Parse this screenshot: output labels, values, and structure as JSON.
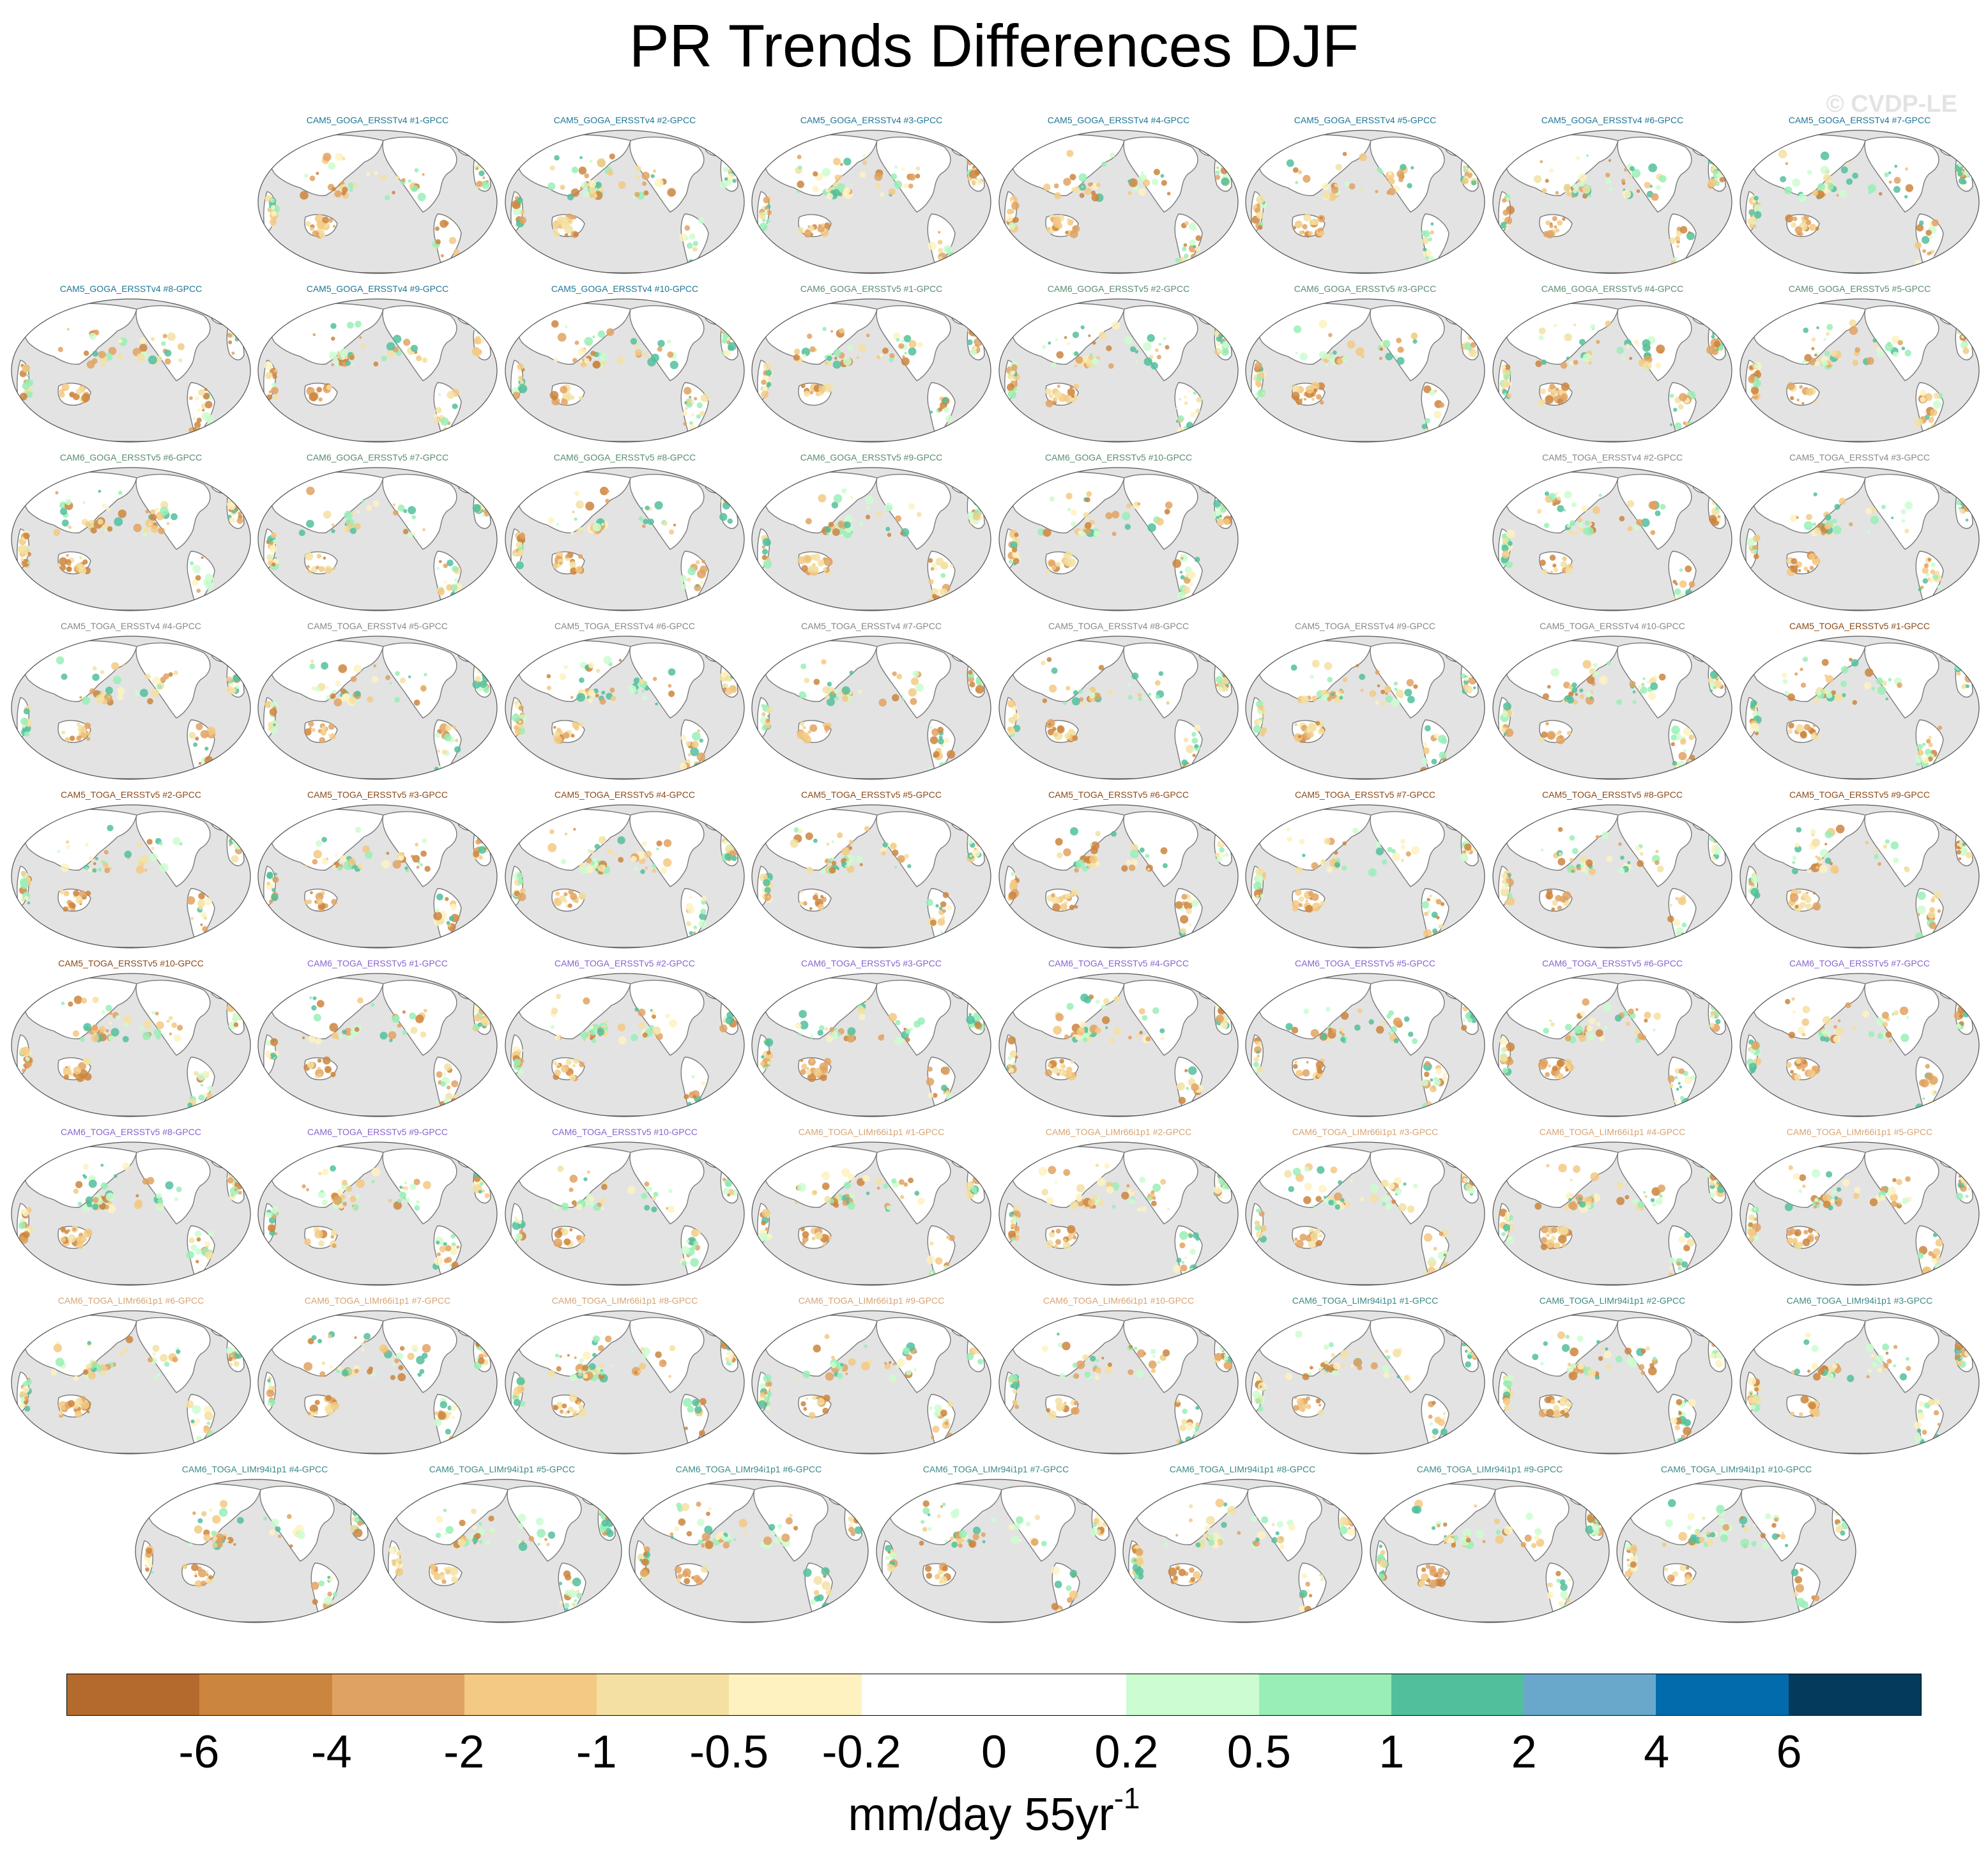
{
  "title": "PR Trends Differences DJF",
  "watermark": "© CVDP-LE",
  "map": {
    "ocean_color": "#e3e3e3",
    "land_color": "#ffffff",
    "coast_color": "#7a7a7a",
    "projection": "robinson",
    "center": "pacific"
  },
  "colorbar": {
    "colors": [
      "#b36a2c",
      "#cc853e",
      "#e0a262",
      "#f3c983",
      "#f3e0a2",
      "#fef2c1",
      "#ffffff",
      "#ffffff",
      "#ccfdd0",
      "#99eeb6",
      "#52bf9c",
      "#6aa8cb",
      "#026bab",
      "#043a5c"
    ],
    "tick_labels": [
      "-6",
      "-4",
      "-2",
      "-1",
      "-0.5",
      "-0.2",
      "0",
      "0.2",
      "0.5",
      "1",
      "2",
      "4",
      "6"
    ],
    "units_main": "mm/day 55yr",
    "units_exponent": "-1"
  },
  "groups": {
    "g1": "#1d7694",
    "g2": "#5a8c6e",
    "g3": "#888888",
    "g4": "#8b4a18",
    "g5": "#8a63cf",
    "g6": "#d8a473",
    "g7": "#3c8888"
  },
  "panels": [
    {
      "label": "CAM5_GOGA_ERSSTv4 #1-GPCC",
      "group": "g1"
    },
    {
      "label": "CAM5_GOGA_ERSSTv4 #2-GPCC",
      "group": "g1"
    },
    {
      "label": "CAM5_GOGA_ERSSTv4 #3-GPCC",
      "group": "g1"
    },
    {
      "label": "CAM5_GOGA_ERSSTv4 #4-GPCC",
      "group": "g1"
    },
    {
      "label": "CAM5_GOGA_ERSSTv4 #5-GPCC",
      "group": "g1"
    },
    {
      "label": "CAM5_GOGA_ERSSTv4 #6-GPCC",
      "group": "g1"
    },
    {
      "label": "CAM5_GOGA_ERSSTv4 #7-GPCC",
      "group": "g1"
    },
    {
      "label": "CAM5_GOGA_ERSSTv4 #8-GPCC",
      "group": "g1"
    },
    {
      "label": "CAM5_GOGA_ERSSTv4 #9-GPCC",
      "group": "g1"
    },
    {
      "label": "CAM5_GOGA_ERSSTv4 #10-GPCC",
      "group": "g1"
    },
    {
      "label": "CAM6_GOGA_ERSSTv5 #1-GPCC",
      "group": "g2"
    },
    {
      "label": "CAM6_GOGA_ERSSTv5 #2-GPCC",
      "group": "g2"
    },
    {
      "label": "CAM6_GOGA_ERSSTv5 #3-GPCC",
      "group": "g2"
    },
    {
      "label": "CAM6_GOGA_ERSSTv5 #4-GPCC",
      "group": "g2"
    },
    {
      "label": "CAM6_GOGA_ERSSTv5 #5-GPCC",
      "group": "g2"
    },
    {
      "label": "CAM6_GOGA_ERSSTv5 #6-GPCC",
      "group": "g2"
    },
    {
      "label": "CAM6_GOGA_ERSSTv5 #7-GPCC",
      "group": "g2"
    },
    {
      "label": "CAM6_GOGA_ERSSTv5 #8-GPCC",
      "group": "g2"
    },
    {
      "label": "CAM6_GOGA_ERSSTv5 #9-GPCC",
      "group": "g2"
    },
    {
      "label": "CAM6_GOGA_ERSSTv5 #10-GPCC",
      "group": "g2"
    },
    {
      "label": "CAM5_TOGA_ERSSTv4 #2-GPCC",
      "group": "g3"
    },
    {
      "label": "CAM5_TOGA_ERSSTv4 #3-GPCC",
      "group": "g3"
    },
    {
      "label": "CAM5_TOGA_ERSSTv4 #4-GPCC",
      "group": "g3"
    },
    {
      "label": "CAM5_TOGA_ERSSTv4 #5-GPCC",
      "group": "g3"
    },
    {
      "label": "CAM5_TOGA_ERSSTv4 #6-GPCC",
      "group": "g3"
    },
    {
      "label": "CAM5_TOGA_ERSSTv4 #7-GPCC",
      "group": "g3"
    },
    {
      "label": "CAM5_TOGA_ERSSTv4 #8-GPCC",
      "group": "g3"
    },
    {
      "label": "CAM5_TOGA_ERSSTv4 #9-GPCC",
      "group": "g3"
    },
    {
      "label": "CAM5_TOGA_ERSSTv4 #10-GPCC",
      "group": "g3"
    },
    {
      "label": "CAM5_TOGA_ERSSTv5 #1-GPCC",
      "group": "g4"
    },
    {
      "label": "CAM5_TOGA_ERSSTv5 #2-GPCC",
      "group": "g4"
    },
    {
      "label": "CAM5_TOGA_ERSSTv5 #3-GPCC",
      "group": "g4"
    },
    {
      "label": "CAM5_TOGA_ERSSTv5 #4-GPCC",
      "group": "g4"
    },
    {
      "label": "CAM5_TOGA_ERSSTv5 #5-GPCC",
      "group": "g4"
    },
    {
      "label": "CAM5_TOGA_ERSSTv5 #6-GPCC",
      "group": "g4"
    },
    {
      "label": "CAM5_TOGA_ERSSTv5 #7-GPCC",
      "group": "g4"
    },
    {
      "label": "CAM5_TOGA_ERSSTv5 #8-GPCC",
      "group": "g4"
    },
    {
      "label": "CAM5_TOGA_ERSSTv5 #9-GPCC",
      "group": "g4"
    },
    {
      "label": "CAM5_TOGA_ERSSTv5 #10-GPCC",
      "group": "g4"
    },
    {
      "label": "CAM6_TOGA_ERSSTv5 #1-GPCC",
      "group": "g5"
    },
    {
      "label": "CAM6_TOGA_ERSSTv5 #2-GPCC",
      "group": "g5"
    },
    {
      "label": "CAM6_TOGA_ERSSTv5 #3-GPCC",
      "group": "g5"
    },
    {
      "label": "CAM6_TOGA_ERSSTv5 #4-GPCC",
      "group": "g5"
    },
    {
      "label": "CAM6_TOGA_ERSSTv5 #5-GPCC",
      "group": "g5"
    },
    {
      "label": "CAM6_TOGA_ERSSTv5 #6-GPCC",
      "group": "g5"
    },
    {
      "label": "CAM6_TOGA_ERSSTv5 #7-GPCC",
      "group": "g5"
    },
    {
      "label": "CAM6_TOGA_ERSSTv5 #8-GPCC",
      "group": "g5"
    },
    {
      "label": "CAM6_TOGA_ERSSTv5 #9-GPCC",
      "group": "g5"
    },
    {
      "label": "CAM6_TOGA_ERSSTv5 #10-GPCC",
      "group": "g5"
    },
    {
      "label": "CAM6_TOGA_LIMr66i1p1 #1-GPCC",
      "group": "g6"
    },
    {
      "label": "CAM6_TOGA_LIMr66i1p1 #2-GPCC",
      "group": "g6"
    },
    {
      "label": "CAM6_TOGA_LIMr66i1p1 #3-GPCC",
      "group": "g6"
    },
    {
      "label": "CAM6_TOGA_LIMr66i1p1 #4-GPCC",
      "group": "g6"
    },
    {
      "label": "CAM6_TOGA_LIMr66i1p1 #5-GPCC",
      "group": "g6"
    },
    {
      "label": "CAM6_TOGA_LIMr66i1p1 #6-GPCC",
      "group": "g6"
    },
    {
      "label": "CAM6_TOGA_LIMr66i1p1 #7-GPCC",
      "group": "g6"
    },
    {
      "label": "CAM6_TOGA_LIMr66i1p1 #8-GPCC",
      "group": "g6"
    },
    {
      "label": "CAM6_TOGA_LIMr66i1p1 #9-GPCC",
      "group": "g6"
    },
    {
      "label": "CAM6_TOGA_LIMr66i1p1 #10-GPCC",
      "group": "g6"
    },
    {
      "label": "CAM6_TOGA_LIMr94i1p1 #1-GPCC",
      "group": "g7"
    },
    {
      "label": "CAM6_TOGA_LIMr94i1p1 #2-GPCC",
      "group": "g7"
    },
    {
      "label": "CAM6_TOGA_LIMr94i1p1 #3-GPCC",
      "group": "g7"
    },
    {
      "label": "CAM6_TOGA_LIMr94i1p1 #4-GPCC",
      "group": "g7"
    },
    {
      "label": "CAM6_TOGA_LIMr94i1p1 #5-GPCC",
      "group": "g7"
    },
    {
      "label": "CAM6_TOGA_LIMr94i1p1 #6-GPCC",
      "group": "g7"
    },
    {
      "label": "CAM6_TOGA_LIMr94i1p1 #7-GPCC",
      "group": "g7"
    },
    {
      "label": "CAM6_TOGA_LIMr94i1p1 #8-GPCC",
      "group": "g7"
    },
    {
      "label": "CAM6_TOGA_LIMr94i1p1 #9-GPCC",
      "group": "g7"
    },
    {
      "label": "CAM6_TOGA_LIMr94i1p1 #10-GPCC",
      "group": "g7"
    }
  ]
}
